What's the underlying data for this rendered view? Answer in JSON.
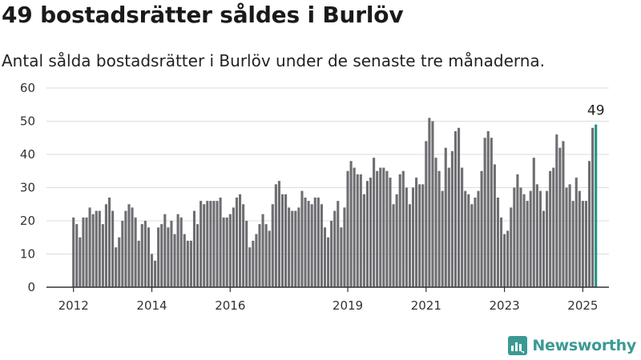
{
  "header": {
    "title": "49 bostadsrätter såldes i Burlöv",
    "subtitle": "Antal sålda bostadsrätter i Burlöv under de senaste tre månaderna."
  },
  "brand": {
    "name": "Newsworthy",
    "icon": "newsworthy-logo-icon",
    "color": "#3a9a93"
  },
  "chart_data": {
    "type": "bar",
    "ylim": [
      0,
      60
    ],
    "yticks": [
      0,
      10,
      20,
      30,
      40,
      50,
      60
    ],
    "xtick_labels": [
      {
        "label": "2012",
        "index": 0
      },
      {
        "label": "2014",
        "index": 24
      },
      {
        "label": "2016",
        "index": 48
      },
      {
        "label": "2019",
        "index": 84
      },
      {
        "label": "2021",
        "index": 108
      },
      {
        "label": "2023",
        "index": 132
      },
      {
        "label": "2025",
        "index": 156
      }
    ],
    "grid": true,
    "bar_color": "#6e6d72",
    "highlight_color": "#1f958c",
    "highlight_label": "49",
    "values": [
      21,
      19,
      15,
      21,
      21,
      24,
      22,
      23,
      23,
      19,
      25,
      27,
      23,
      12,
      15,
      20,
      23,
      25,
      24,
      21,
      14,
      19,
      20,
      18,
      10,
      8,
      18,
      19,
      22,
      18,
      20,
      16,
      22,
      21,
      16,
      14,
      14,
      23,
      19,
      26,
      25,
      26,
      26,
      26,
      26,
      27,
      21,
      21,
      22,
      24,
      27,
      28,
      25,
      20,
      12,
      14,
      16,
      19,
      22,
      19,
      17,
      25,
      31,
      32,
      28,
      28,
      24,
      23,
      23,
      24,
      29,
      27,
      26,
      25,
      27,
      27,
      25,
      18,
      15,
      20,
      23,
      26,
      18,
      24,
      35,
      38,
      36,
      34,
      34,
      28,
      32,
      33,
      39,
      35,
      36,
      36,
      35,
      33,
      25,
      28,
      34,
      35,
      30,
      25,
      30,
      33,
      31,
      31,
      44,
      51,
      50,
      39,
      35,
      29,
      42,
      36,
      41,
      47,
      48,
      36,
      29,
      28,
      25,
      27,
      29,
      35,
      45,
      47,
      45,
      37,
      27,
      21,
      16,
      17,
      24,
      30,
      34,
      30,
      28,
      26,
      29,
      39,
      31,
      29,
      23,
      29,
      35,
      36,
      46,
      42,
      44,
      30,
      31,
      26,
      33,
      29,
      26,
      26,
      38,
      48,
      49
    ]
  }
}
